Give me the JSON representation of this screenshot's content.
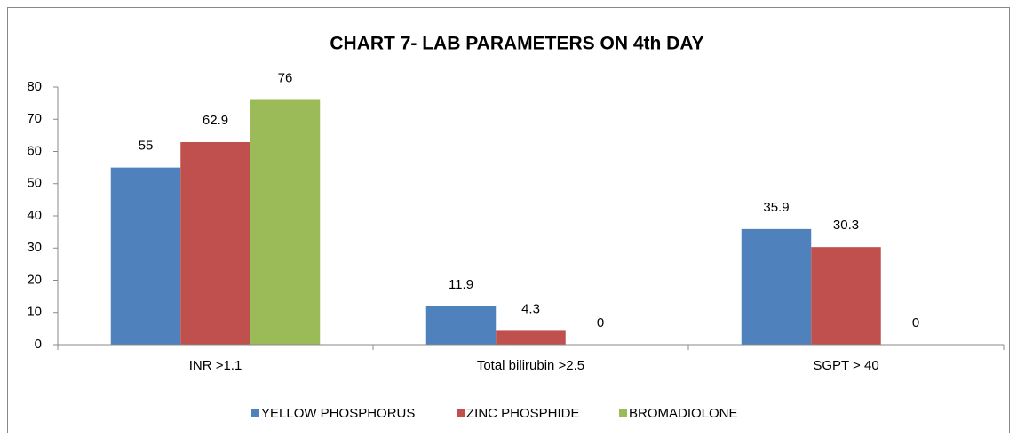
{
  "chart_data": {
    "type": "bar",
    "title": "CHART 7- LAB PARAMETERS ON 4th DAY",
    "categories": [
      "INR >1.1",
      "Total bilirubin >2.5",
      "SGPT > 40"
    ],
    "series": [
      {
        "name": "YELLOW PHOSPHORUS",
        "color": "#4f81bd",
        "values": [
          55,
          11.9,
          35.9
        ]
      },
      {
        "name": "ZINC PHOSPHIDE",
        "color": "#c0504d",
        "values": [
          62.9,
          4.3,
          30.3
        ]
      },
      {
        "name": "BROMADIOLONE",
        "color": "#9bbb59",
        "values": [
          76,
          0,
          0
        ]
      }
    ],
    "ylim": [
      0,
      80
    ],
    "yticks": [
      0,
      10,
      20,
      30,
      40,
      50,
      60,
      70,
      80
    ],
    "grid": false,
    "legend": "bottom"
  }
}
